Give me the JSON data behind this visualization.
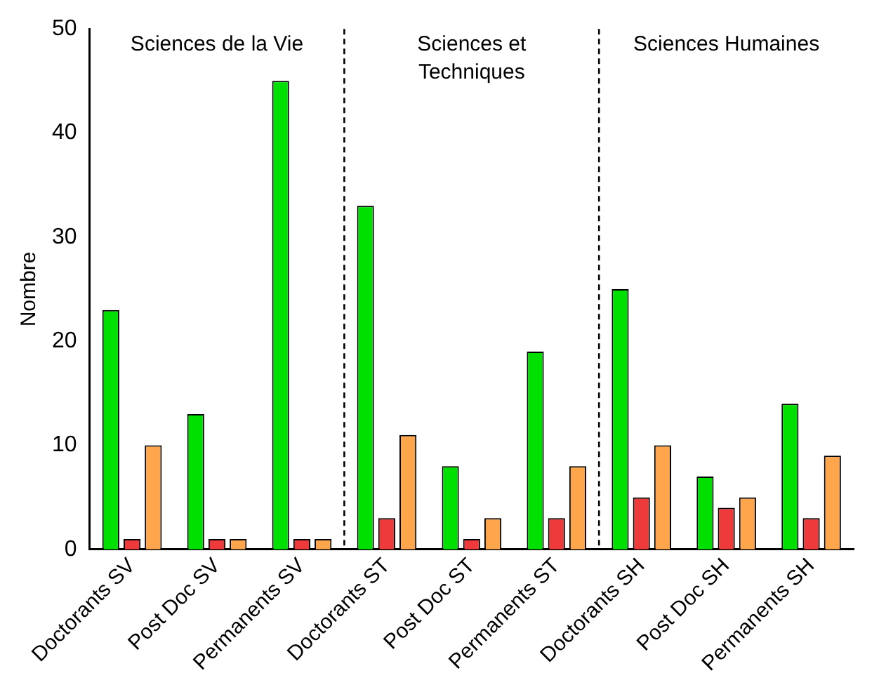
{
  "chart_data": {
    "type": "bar",
    "ylabel": "Nombre",
    "categories": [
      "Doctorants SV",
      "Post Doc SV",
      "Permanents SV",
      "Doctorants ST",
      "Post Doc ST",
      "Permanents ST",
      "Doctorants SH",
      "Post Doc SH",
      "Permanents SH"
    ],
    "series": [
      {
        "color": "#00e000",
        "values": [
          23,
          13,
          45,
          33,
          8,
          19,
          25,
          7,
          14
        ]
      },
      {
        "color": "#ee3a3a",
        "values": [
          1,
          1,
          1,
          3,
          1,
          3,
          5,
          4,
          3
        ]
      },
      {
        "color": "#ffa64d",
        "values": [
          10,
          1,
          1,
          11,
          3,
          8,
          10,
          5,
          9
        ]
      }
    ],
    "ylim": [
      0,
      50
    ],
    "yticks": [
      0,
      10,
      20,
      30,
      40,
      50
    ],
    "grid": false,
    "legend": false,
    "annotations": [
      "Sciences de la Vie",
      "Sciences et Techniques",
      "Sciences Humaines"
    ]
  }
}
